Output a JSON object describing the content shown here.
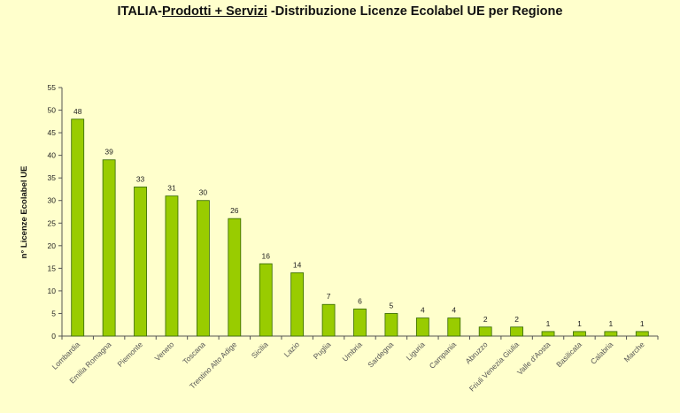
{
  "title": {
    "part1": "ITALIA-",
    "part2": "Prodotti + Servizi",
    "part3": " -Distribuzione Licenze Ecolabel UE per Regione"
  },
  "colors": {
    "background": "#ffffcc",
    "bar_fill": "#99cc00",
    "bar_stroke": "#336600"
  },
  "chart_data": {
    "type": "bar",
    "title": "ITALIA-Prodotti + Servizi -Distribuzione Licenze Ecolabel UE per Regione",
    "xlabel": "",
    "ylabel": "n° Licenze  Ecolabel  UE",
    "ylim": [
      0,
      55
    ],
    "yticks": [
      0,
      5,
      10,
      15,
      20,
      25,
      30,
      35,
      40,
      45,
      50,
      55
    ],
    "grid": false,
    "categories": [
      "Lombardia",
      "Emilia Romagna",
      "Piemonte",
      "Veneto",
      "Toscana",
      "Trentino Alto Adige",
      "Sicilia",
      "Lazio",
      "Puglia",
      "Umbria",
      "Sardegna",
      "Liguria",
      "Campania",
      "Abruzzo",
      "Friuli Venezia Giulia",
      "Valle d'Aosta",
      "Basilicata",
      "Calabria",
      "Marche"
    ],
    "values": [
      48,
      39,
      33,
      31,
      30,
      26,
      16,
      14,
      7,
      6,
      5,
      4,
      4,
      2,
      2,
      1,
      1,
      1,
      1
    ]
  }
}
